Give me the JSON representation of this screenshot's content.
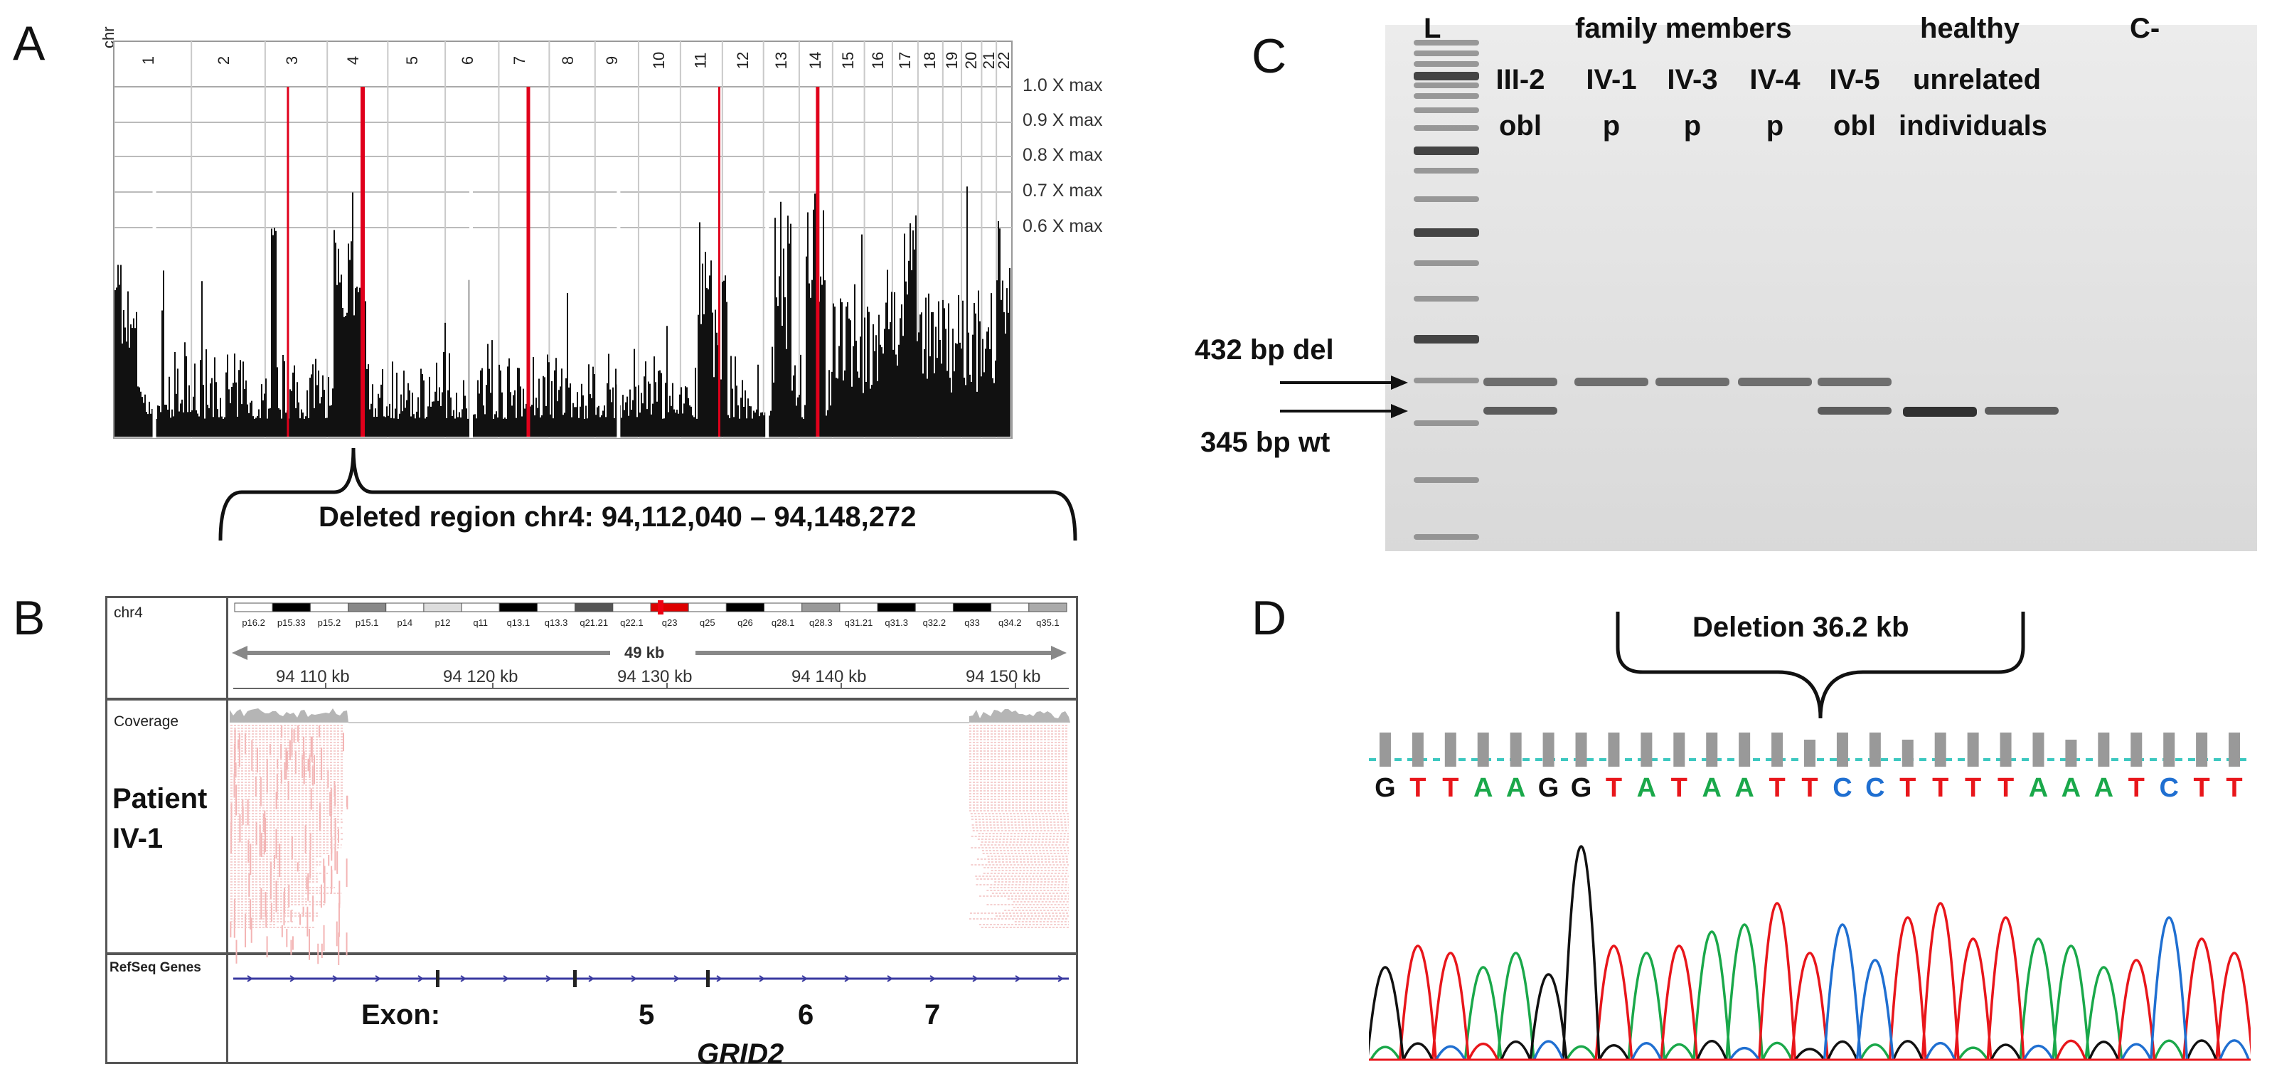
{
  "panels": {
    "a": "A",
    "b": "B",
    "c": "C",
    "d": "D"
  },
  "panel_a": {
    "chr_axis_label": "chr",
    "chromosomes": [
      "1",
      "2",
      "3",
      "4",
      "5",
      "6",
      "7",
      "8",
      "9",
      "10",
      "11",
      "12",
      "13",
      "14",
      "15",
      "16",
      "17",
      "18",
      "19",
      "20",
      "21",
      "22"
    ],
    "reference_lines": [
      "1.0 X max",
      "0.9 X max",
      "0.8 X max",
      "0.7 X max",
      "0.6 X max"
    ],
    "deleted_region_label": "Deleted region chr4: 94,112,040 – 94,148,272",
    "highlight_color": "#e0001b"
  },
  "panel_b": {
    "chr_label": "chr4",
    "cytobands": [
      "p16.2",
      "p15.33",
      "p15.2",
      "p15.1",
      "p14",
      "p12",
      "q11",
      "q13.1",
      "q13.3",
      "q21.21",
      "q22.1",
      "q23",
      "q25",
      "q26",
      "q28.1",
      "q28.3",
      "q31.21",
      "q31.3",
      "q32.2",
      "q33",
      "q34.2",
      "q35.1"
    ],
    "span_label": "49 kb",
    "coordinates": [
      "94 110 kb",
      "94 120 kb",
      "94 130 kb",
      "94 140 kb",
      "94 150 kb"
    ],
    "coverage_label": "Coverage",
    "sample_label_line1": "Patient",
    "sample_label_line2": "IV-1",
    "genes_track_label": "RefSeq Genes",
    "exon_label": "Exon:",
    "exons": [
      "5",
      "6",
      "7"
    ],
    "gene_name": "GRID2"
  },
  "panel_c": {
    "ladder_label": "L",
    "family_header": "family members",
    "healthy_header_line1": "healthy",
    "healthy_header_line2": "unrelated",
    "healthy_header_line3": "individuals",
    "negative_control": "C-",
    "lanes": [
      {
        "id": "III-2",
        "status": "obl"
      },
      {
        "id": "IV-1",
        "status": "p"
      },
      {
        "id": "IV-3",
        "status": "p"
      },
      {
        "id": "IV-4",
        "status": "p"
      },
      {
        "id": "IV-5",
        "status": "obl"
      }
    ],
    "band_del_label": "432 bp del",
    "band_wt_label": "345 bp wt"
  },
  "panel_d": {
    "deletion_label": "Deletion 36.2 kb",
    "sequence": [
      "G",
      "T",
      "T",
      "A",
      "A",
      "G",
      "G",
      "T",
      "A",
      "T",
      "A",
      "A",
      "T",
      "T",
      "C",
      "C",
      "T",
      "T",
      "T",
      "T",
      "A",
      "A",
      "A",
      "T",
      "C",
      "T",
      "T"
    ],
    "base_colors": {
      "A": "#1aa84a",
      "T": "#e8161b",
      "G": "#111111",
      "C": "#1f6fd1"
    }
  }
}
